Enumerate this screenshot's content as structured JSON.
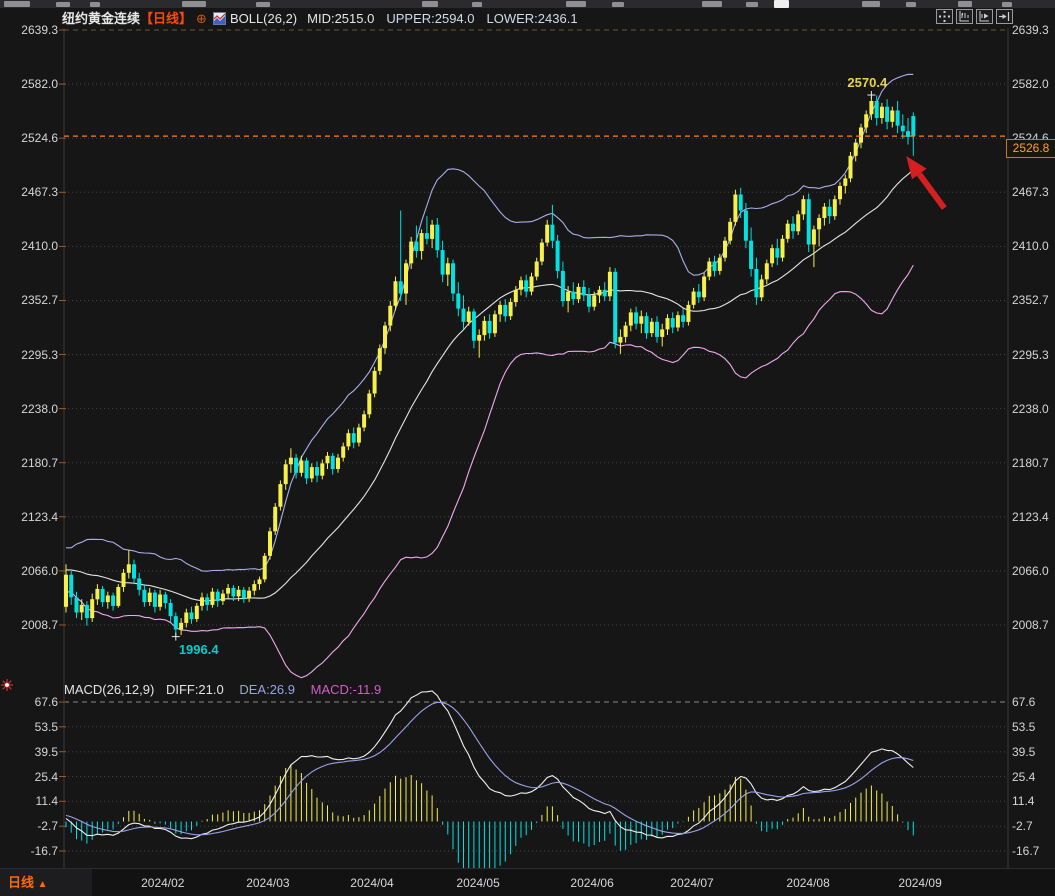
{
  "header": {
    "title": "纽约黄金连续",
    "period_tag": "【日线】",
    "boll": {
      "label": "BOLL(26,2)",
      "mid": "MID:2515.0",
      "upper": "UPPER:2594.0",
      "lower": "LOWER:2436.1"
    }
  },
  "icons": {
    "add_indicator": "⊕",
    "right_controls": [
      "crosshair-pan-icon",
      "compress-chart-icon",
      "play-forward-icon",
      "go-to-latest-icon"
    ]
  },
  "macd_header": {
    "label": "MACD(26,12,9)",
    "diff": "DIFF:21.0",
    "dea": "DEA:26.9",
    "macd": "MACD:-11.9"
  },
  "price_box": {
    "value": "2526.8"
  },
  "annotations": {
    "high_label": "2570.4",
    "low_label": "1996.4"
  },
  "bottom_bar": {
    "period_label": "日线",
    "period_arrow": "▲"
  },
  "chart_data": {
    "type": "candlestick",
    "symbol": "纽约黄金连续",
    "period": "日线",
    "price_axis_ticks": [
      2639.3,
      2582.0,
      2524.6,
      2467.3,
      2410.0,
      2352.7,
      2295.3,
      2238.0,
      2180.7,
      2123.4,
      2066.0,
      2008.7
    ],
    "macd_axis_ticks": [
      67.6,
      53.5,
      39.5,
      25.4,
      11.4,
      -2.7,
      -16.7
    ],
    "month_ticks": [
      {
        "label": "2024/02",
        "i": 18.5
      },
      {
        "label": "2024/03",
        "i": 38.6
      },
      {
        "label": "2024/04",
        "i": 58.5
      },
      {
        "label": "2024/05",
        "i": 78.8
      },
      {
        "label": "2024/06",
        "i": 100.6
      },
      {
        "label": "2024/07",
        "i": 119.7
      },
      {
        "label": "2024/08",
        "i": 141.9
      },
      {
        "label": "2024/09",
        "i": 163.3
      }
    ],
    "indicators": {
      "boll": {
        "n": 26,
        "k": 2
      },
      "macd": {
        "fast": 12,
        "slow": 26,
        "signal": 9
      }
    },
    "last_price": 2526.8,
    "high_marker": 2570.4,
    "low_marker": 1996.4,
    "colors": {
      "up": "#f7f04a",
      "down": "#00e2e2",
      "boll_upper": "#a8aee8",
      "boll_mid": "#e4e4e4",
      "boll_lower": "#f0a8ec",
      "diff": "#f0f0f0",
      "dea": "#9aa2e6",
      "grid": "#454547",
      "panel_dash": "#6b5630",
      "macd_dash": "#8a8a8a",
      "price_line": "#ff7d26",
      "arrow": "#d42020",
      "tick": "#9a5a22",
      "hist_pos": "#f7f04a",
      "hist_neg": "#00e2e2"
    },
    "pre_closes": [
      2042,
      2036,
      2048,
      2058,
      2046,
      2038,
      2050,
      2062,
      2072,
      2066,
      2058,
      2070,
      2082,
      2076,
      2088,
      2092,
      2080,
      2068,
      2072,
      2060,
      2052,
      2064,
      2078,
      2070,
      2062,
      2055,
      2066,
      2074,
      2068,
      2060
    ],
    "candles": [
      [
        2028,
        2073,
        2022,
        2062
      ],
      [
        2062,
        2066,
        2030,
        2038
      ],
      [
        2038,
        2044,
        2016,
        2022
      ],
      [
        2022,
        2036,
        2014,
        2030
      ],
      [
        2030,
        2034,
        2008,
        2016
      ],
      [
        2016,
        2042,
        2012,
        2036
      ],
      [
        2036,
        2052,
        2030,
        2047
      ],
      [
        2047,
        2050,
        2028,
        2033
      ],
      [
        2033,
        2044,
        2026,
        2040
      ],
      [
        2040,
        2043,
        2024,
        2029
      ],
      [
        2029,
        2052,
        2027,
        2049
      ],
      [
        2049,
        2068,
        2044,
        2064
      ],
      [
        2064,
        2088,
        2058,
        2073
      ],
      [
        2073,
        2078,
        2052,
        2058
      ],
      [
        2058,
        2064,
        2040,
        2046
      ],
      [
        2046,
        2052,
        2028,
        2033
      ],
      [
        2033,
        2048,
        2029,
        2043
      ],
      [
        2043,
        2046,
        2022,
        2028
      ],
      [
        2028,
        2046,
        2024,
        2041
      ],
      [
        2041,
        2044,
        2026,
        2032
      ],
      [
        2032,
        2036,
        2012,
        2018
      ],
      [
        2018,
        2022,
        1996.4,
        2004
      ],
      [
        2004,
        2016,
        1998,
        2011
      ],
      [
        2011,
        2026,
        2006,
        2022
      ],
      [
        2022,
        2028,
        2010,
        2015
      ],
      [
        2015,
        2032,
        2012,
        2029
      ],
      [
        2029,
        2043,
        2024,
        2038
      ],
      [
        2038,
        2042,
        2024,
        2030
      ],
      [
        2030,
        2048,
        2027,
        2044
      ],
      [
        2044,
        2047,
        2028,
        2034
      ],
      [
        2034,
        2046,
        2030,
        2042
      ],
      [
        2042,
        2052,
        2036,
        2048
      ],
      [
        2048,
        2051,
        2034,
        2039
      ],
      [
        2039,
        2050,
        2034,
        2046
      ],
      [
        2046,
        2049,
        2032,
        2037
      ],
      [
        2037,
        2049,
        2033,
        2045
      ],
      [
        2045,
        2056,
        2040,
        2052
      ],
      [
        2052,
        2060,
        2046,
        2057
      ],
      [
        2057,
        2085,
        2054,
        2082
      ],
      [
        2082,
        2112,
        2078,
        2108
      ],
      [
        2108,
        2138,
        2104,
        2134
      ],
      [
        2134,
        2162,
        2130,
        2158
      ],
      [
        2158,
        2184,
        2152,
        2179
      ],
      [
        2179,
        2196,
        2170,
        2186
      ],
      [
        2186,
        2190,
        2164,
        2170
      ],
      [
        2170,
        2188,
        2166,
        2183
      ],
      [
        2183,
        2186,
        2158,
        2164
      ],
      [
        2164,
        2180,
        2160,
        2176
      ],
      [
        2176,
        2182,
        2160,
        2167
      ],
      [
        2167,
        2184,
        2163,
        2180
      ],
      [
        2180,
        2192,
        2174,
        2188
      ],
      [
        2188,
        2191,
        2168,
        2174
      ],
      [
        2174,
        2190,
        2170,
        2186
      ],
      [
        2186,
        2202,
        2182,
        2198
      ],
      [
        2198,
        2216,
        2194,
        2212
      ],
      [
        2212,
        2218,
        2196,
        2202
      ],
      [
        2202,
        2222,
        2198,
        2218
      ],
      [
        2218,
        2236,
        2214,
        2232
      ],
      [
        2232,
        2258,
        2228,
        2254
      ],
      [
        2254,
        2282,
        2250,
        2278
      ],
      [
        2278,
        2306,
        2274,
        2302
      ],
      [
        2302,
        2330,
        2296,
        2326
      ],
      [
        2326,
        2352,
        2320,
        2347
      ],
      [
        2347,
        2378,
        2342,
        2373
      ],
      [
        2373,
        2448,
        2352,
        2360
      ],
      [
        2360,
        2396,
        2348,
        2392
      ],
      [
        2392,
        2420,
        2386,
        2415
      ],
      [
        2415,
        2432,
        2398,
        2405
      ],
      [
        2405,
        2428,
        2396,
        2424
      ],
      [
        2424,
        2442,
        2412,
        2418
      ],
      [
        2418,
        2438,
        2408,
        2433
      ],
      [
        2433,
        2440,
        2398,
        2406
      ],
      [
        2406,
        2416,
        2372,
        2380
      ],
      [
        2380,
        2398,
        2368,
        2392
      ],
      [
        2392,
        2396,
        2352,
        2360
      ],
      [
        2360,
        2372,
        2336,
        2344
      ],
      [
        2344,
        2358,
        2322,
        2330
      ],
      [
        2330,
        2346,
        2326,
        2341
      ],
      [
        2341,
        2344,
        2302,
        2310
      ],
      [
        2310,
        2322,
        2292,
        2316
      ],
      [
        2316,
        2336,
        2310,
        2331
      ],
      [
        2331,
        2338,
        2312,
        2318
      ],
      [
        2318,
        2342,
        2314,
        2338
      ],
      [
        2338,
        2352,
        2330,
        2348
      ],
      [
        2348,
        2354,
        2330,
        2336
      ],
      [
        2336,
        2355,
        2332,
        2351
      ],
      [
        2351,
        2368,
        2346,
        2364
      ],
      [
        2364,
        2378,
        2358,
        2374
      ],
      [
        2374,
        2380,
        2356,
        2362
      ],
      [
        2362,
        2382,
        2358,
        2378
      ],
      [
        2378,
        2398,
        2374,
        2394
      ],
      [
        2394,
        2418,
        2390,
        2414
      ],
      [
        2414,
        2438,
        2410,
        2433
      ],
      [
        2433,
        2454,
        2408,
        2416
      ],
      [
        2416,
        2422,
        2376,
        2384
      ],
      [
        2384,
        2394,
        2346,
        2352
      ],
      [
        2352,
        2368,
        2340,
        2362
      ],
      [
        2362,
        2372,
        2348,
        2354
      ],
      [
        2354,
        2371,
        2350,
        2367
      ],
      [
        2367,
        2374,
        2352,
        2358
      ],
      [
        2358,
        2366,
        2340,
        2346
      ],
      [
        2346,
        2362,
        2342,
        2358
      ],
      [
        2358,
        2368,
        2350,
        2364
      ],
      [
        2364,
        2372,
        2352,
        2357
      ],
      [
        2357,
        2388,
        2352,
        2383
      ],
      [
        2383,
        2387,
        2302,
        2308
      ],
      [
        2308,
        2322,
        2296,
        2314
      ],
      [
        2314,
        2330,
        2308,
        2326
      ],
      [
        2326,
        2344,
        2320,
        2340
      ],
      [
        2340,
        2346,
        2322,
        2328
      ],
      [
        2328,
        2342,
        2318,
        2336
      ],
      [
        2336,
        2340,
        2312,
        2318
      ],
      [
        2318,
        2334,
        2314,
        2330
      ],
      [
        2330,
        2336,
        2308,
        2314
      ],
      [
        2314,
        2328,
        2304,
        2322
      ],
      [
        2322,
        2338,
        2316,
        2334
      ],
      [
        2334,
        2340,
        2318,
        2324
      ],
      [
        2324,
        2341,
        2320,
        2337
      ],
      [
        2337,
        2344,
        2324,
        2330
      ],
      [
        2330,
        2352,
        2326,
        2348
      ],
      [
        2348,
        2366,
        2344,
        2362
      ],
      [
        2362,
        2370,
        2350,
        2356
      ],
      [
        2356,
        2382,
        2352,
        2378
      ],
      [
        2378,
        2398,
        2374,
        2394
      ],
      [
        2394,
        2400,
        2378,
        2384
      ],
      [
        2384,
        2402,
        2380,
        2398
      ],
      [
        2398,
        2420,
        2394,
        2416
      ],
      [
        2416,
        2440,
        2412,
        2436
      ],
      [
        2436,
        2470,
        2432,
        2465
      ],
      [
        2465,
        2472,
        2440,
        2448
      ],
      [
        2448,
        2456,
        2408,
        2416
      ],
      [
        2416,
        2430,
        2378,
        2386
      ],
      [
        2386,
        2398,
        2348,
        2356
      ],
      [
        2356,
        2380,
        2352,
        2375
      ],
      [
        2375,
        2396,
        2370,
        2392
      ],
      [
        2392,
        2412,
        2388,
        2408
      ],
      [
        2408,
        2418,
        2390,
        2398
      ],
      [
        2398,
        2422,
        2394,
        2418
      ],
      [
        2418,
        2438,
        2414,
        2434
      ],
      [
        2434,
        2442,
        2418,
        2426
      ],
      [
        2426,
        2448,
        2422,
        2444
      ],
      [
        2444,
        2464,
        2438,
        2460
      ],
      [
        2460,
        2466,
        2404,
        2412
      ],
      [
        2412,
        2432,
        2388,
        2428
      ],
      [
        2428,
        2444,
        2410,
        2440
      ],
      [
        2440,
        2456,
        2432,
        2452
      ],
      [
        2452,
        2460,
        2434,
        2442
      ],
      [
        2442,
        2464,
        2438,
        2460
      ],
      [
        2460,
        2478,
        2454,
        2474
      ],
      [
        2474,
        2486,
        2466,
        2482
      ],
      [
        2482,
        2510,
        2478,
        2506
      ],
      [
        2506,
        2524,
        2500,
        2520
      ],
      [
        2520,
        2540,
        2514,
        2536
      ],
      [
        2536,
        2554,
        2530,
        2550
      ],
      [
        2550,
        2570.4,
        2544,
        2564
      ],
      [
        2564,
        2570,
        2538,
        2546
      ],
      [
        2546,
        2562,
        2540,
        2558
      ],
      [
        2558,
        2566,
        2534,
        2542
      ],
      [
        2542,
        2558,
        2536,
        2554
      ],
      [
        2554,
        2564,
        2530,
        2538
      ],
      [
        2538,
        2550,
        2524,
        2532
      ],
      [
        2532,
        2546,
        2518,
        2526
      ],
      [
        2548,
        2552,
        2506,
        2526.8
      ]
    ]
  }
}
